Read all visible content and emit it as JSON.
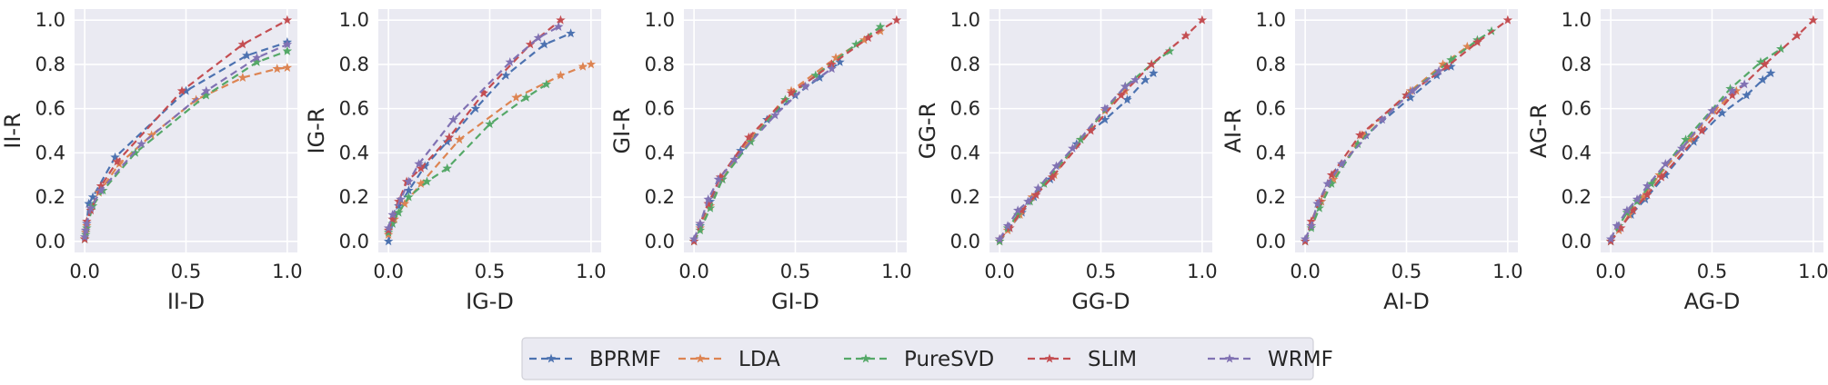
{
  "colors": {
    "panel_bg": "#eaeaf2",
    "grid": "#ffffff",
    "BPRMF": "#4c72b0",
    "LDA": "#dd8452",
    "PureSVD": "#55a868",
    "SLIM": "#c44e52",
    "WRMF": "#8172b3"
  },
  "legend": {
    "placement": "bottom-center",
    "entries": [
      "BPRMF",
      "LDA",
      "PureSVD",
      "SLIM",
      "WRMF"
    ]
  },
  "chart_data": [
    {
      "type": "line",
      "xlabel": "II-D",
      "ylabel": "II-R",
      "xlim": [
        -0.05,
        1.05
      ],
      "ylim": [
        -0.05,
        1.05
      ],
      "xticks": [
        "0.0",
        "0.5",
        "1.0"
      ],
      "yticks": [
        "0.0",
        "0.2",
        "0.4",
        "0.6",
        "0.8",
        "1.0"
      ],
      "grid": true,
      "series": [
        {
          "name": "BPRMF",
          "x": [
            0.0,
            0.005,
            0.01,
            0.02,
            0.04,
            0.15,
            0.5,
            0.8,
            1.0
          ],
          "y": [
            0.01,
            0.04,
            0.08,
            0.17,
            0.2,
            0.38,
            0.68,
            0.84,
            0.9
          ]
        },
        {
          "name": "LDA",
          "x": [
            0.0,
            0.005,
            0.01,
            0.03,
            0.07,
            0.17,
            0.33,
            0.55,
            0.78,
            0.95,
            1.0
          ],
          "y": [
            0.01,
            0.04,
            0.07,
            0.15,
            0.22,
            0.35,
            0.48,
            0.64,
            0.74,
            0.78,
            0.785
          ]
        },
        {
          "name": "PureSVD",
          "x": [
            0.0,
            0.005,
            0.01,
            0.04,
            0.09,
            0.25,
            0.6,
            0.85,
            1.0
          ],
          "y": [
            0.01,
            0.03,
            0.06,
            0.16,
            0.23,
            0.4,
            0.66,
            0.81,
            0.86
          ]
        },
        {
          "name": "SLIM",
          "x": [
            0.0,
            0.005,
            0.01,
            0.03,
            0.08,
            0.16,
            0.48,
            0.78,
            1.0
          ],
          "y": [
            0.01,
            0.05,
            0.09,
            0.14,
            0.25,
            0.36,
            0.68,
            0.89,
            1.0
          ]
        },
        {
          "name": "WRMF",
          "x": [
            0.0,
            0.005,
            0.01,
            0.03,
            0.08,
            0.28,
            0.6,
            0.85,
            1.0
          ],
          "y": [
            0.02,
            0.05,
            0.08,
            0.15,
            0.23,
            0.44,
            0.68,
            0.83,
            0.89
          ]
        }
      ]
    },
    {
      "type": "line",
      "xlabel": "IG-D",
      "ylabel": "IG-R",
      "xlim": [
        -0.05,
        1.05
      ],
      "ylim": [
        -0.05,
        1.05
      ],
      "xticks": [
        "0.0",
        "0.5",
        "1.0"
      ],
      "yticks": [
        "0.0",
        "0.2",
        "0.4",
        "0.6",
        "0.8",
        "1.0"
      ],
      "grid": true,
      "series": [
        {
          "name": "BPRMF",
          "x": [
            0.0,
            0.02,
            0.05,
            0.1,
            0.18,
            0.29,
            0.43,
            0.58,
            0.77,
            0.9
          ],
          "y": [
            0.0,
            0.08,
            0.16,
            0.23,
            0.34,
            0.45,
            0.6,
            0.75,
            0.89,
            0.94
          ]
        },
        {
          "name": "LDA",
          "x": [
            0.0,
            0.03,
            0.08,
            0.16,
            0.35,
            0.63,
            0.85,
            0.96,
            1.0
          ],
          "y": [
            0.03,
            0.1,
            0.17,
            0.26,
            0.46,
            0.65,
            0.75,
            0.79,
            0.8
          ]
        },
        {
          "name": "PureSVD",
          "x": [
            0.0,
            0.02,
            0.05,
            0.1,
            0.19,
            0.29,
            0.5,
            0.68,
            0.78
          ],
          "y": [
            0.04,
            0.08,
            0.13,
            0.2,
            0.27,
            0.33,
            0.53,
            0.65,
            0.71
          ]
        },
        {
          "name": "SLIM",
          "x": [
            0.0,
            0.02,
            0.05,
            0.09,
            0.16,
            0.3,
            0.47,
            0.7,
            0.85
          ],
          "y": [
            0.05,
            0.1,
            0.18,
            0.27,
            0.33,
            0.47,
            0.67,
            0.89,
            1.0
          ]
        },
        {
          "name": "WRMF",
          "x": [
            0.0,
            0.02,
            0.06,
            0.1,
            0.15,
            0.32,
            0.6,
            0.74,
            0.84
          ],
          "y": [
            0.06,
            0.12,
            0.19,
            0.27,
            0.35,
            0.55,
            0.81,
            0.92,
            0.97
          ]
        }
      ]
    },
    {
      "type": "line",
      "xlabel": "GI-D",
      "ylabel": "GI-R",
      "xlim": [
        -0.05,
        1.05
      ],
      "ylim": [
        -0.05,
        1.05
      ],
      "xticks": [
        "0.0",
        "0.5",
        "1.0"
      ],
      "yticks": [
        "0.0",
        "0.2",
        "0.4",
        "0.6",
        "0.8",
        "1.0"
      ],
      "grid": true,
      "series": [
        {
          "name": "BPRMF",
          "x": [
            0.0,
            0.03,
            0.08,
            0.14,
            0.23,
            0.36,
            0.5,
            0.62,
            0.72
          ],
          "y": [
            0.0,
            0.07,
            0.18,
            0.28,
            0.41,
            0.55,
            0.66,
            0.74,
            0.81
          ]
        },
        {
          "name": "LDA",
          "x": [
            0.0,
            0.03,
            0.08,
            0.14,
            0.28,
            0.48,
            0.7,
            0.84,
            0.92
          ],
          "y": [
            0.0,
            0.06,
            0.16,
            0.28,
            0.47,
            0.68,
            0.83,
            0.91,
            0.95
          ]
        },
        {
          "name": "PureSVD",
          "x": [
            0.0,
            0.03,
            0.08,
            0.14,
            0.28,
            0.45,
            0.6,
            0.8,
            0.92
          ],
          "y": [
            0.0,
            0.05,
            0.15,
            0.28,
            0.45,
            0.64,
            0.75,
            0.89,
            0.97
          ]
        },
        {
          "name": "SLIM",
          "x": [
            0.0,
            0.03,
            0.07,
            0.13,
            0.27,
            0.48,
            0.68,
            0.86,
            1.0
          ],
          "y": [
            0.0,
            0.08,
            0.17,
            0.29,
            0.47,
            0.67,
            0.8,
            0.92,
            1.0
          ]
        },
        {
          "name": "WRMF",
          "x": [
            0.0,
            0.03,
            0.07,
            0.12,
            0.2,
            0.4,
            0.55,
            0.68
          ],
          "y": [
            0.01,
            0.08,
            0.19,
            0.28,
            0.37,
            0.57,
            0.7,
            0.78
          ]
        }
      ]
    },
    {
      "type": "line",
      "xlabel": "GG-D",
      "ylabel": "GG-R",
      "xlim": [
        -0.05,
        1.05
      ],
      "ylim": [
        -0.05,
        1.05
      ],
      "xticks": [
        "0.0",
        "0.5",
        "1.0"
      ],
      "yticks": [
        "0.0",
        "0.2",
        "0.4",
        "0.6",
        "0.8",
        "1.0"
      ],
      "grid": true,
      "series": [
        {
          "name": "BPRMF",
          "x": [
            0.0,
            0.05,
            0.11,
            0.17,
            0.25,
            0.38,
            0.52,
            0.63,
            0.72,
            0.76
          ],
          "y": [
            0.0,
            0.06,
            0.13,
            0.2,
            0.28,
            0.44,
            0.55,
            0.64,
            0.73,
            0.76
          ]
        },
        {
          "name": "LDA",
          "x": [
            0.0,
            0.04,
            0.1,
            0.16,
            0.27,
            0.4,
            0.52,
            0.62
          ],
          "y": [
            0.0,
            0.05,
            0.12,
            0.2,
            0.3,
            0.46,
            0.59,
            0.68
          ]
        },
        {
          "name": "PureSVD",
          "x": [
            0.0,
            0.04,
            0.09,
            0.15,
            0.22,
            0.4,
            0.62,
            0.75,
            0.84
          ],
          "y": [
            0.0,
            0.06,
            0.12,
            0.18,
            0.26,
            0.46,
            0.7,
            0.8,
            0.86
          ]
        },
        {
          "name": "SLIM",
          "x": [
            0.0,
            0.05,
            0.11,
            0.18,
            0.26,
            0.45,
            0.6,
            0.75,
            0.92,
            1.0
          ],
          "y": [
            0.01,
            0.06,
            0.14,
            0.21,
            0.29,
            0.5,
            0.66,
            0.8,
            0.93,
            1.0
          ]
        },
        {
          "name": "WRMF",
          "x": [
            0.0,
            0.04,
            0.09,
            0.14,
            0.19,
            0.28,
            0.36,
            0.52,
            0.62,
            0.67
          ],
          "y": [
            0.01,
            0.07,
            0.14,
            0.18,
            0.24,
            0.34,
            0.42,
            0.6,
            0.7,
            0.73
          ]
        }
      ]
    },
    {
      "type": "line",
      "xlabel": "AI-D",
      "ylabel": "AI-R",
      "xlim": [
        -0.05,
        1.05
      ],
      "ylim": [
        -0.05,
        1.05
      ],
      "xticks": [
        "0.0",
        "0.5",
        "1.0"
      ],
      "yticks": [
        "0.0",
        "0.2",
        "0.4",
        "0.6",
        "0.8",
        "1.0"
      ],
      "grid": true,
      "series": [
        {
          "name": "BPRMF",
          "x": [
            0.0,
            0.03,
            0.08,
            0.15,
            0.3,
            0.52,
            0.65,
            0.72
          ],
          "y": [
            0.0,
            0.07,
            0.18,
            0.31,
            0.48,
            0.65,
            0.75,
            0.79
          ]
        },
        {
          "name": "LDA",
          "x": [
            0.0,
            0.03,
            0.08,
            0.14,
            0.28,
            0.52,
            0.68,
            0.8
          ],
          "y": [
            0.0,
            0.07,
            0.18,
            0.28,
            0.48,
            0.68,
            0.8,
            0.88
          ]
        },
        {
          "name": "PureSVD",
          "x": [
            0.0,
            0.03,
            0.07,
            0.13,
            0.26,
            0.5,
            0.72,
            0.85,
            0.92
          ],
          "y": [
            0.0,
            0.06,
            0.15,
            0.26,
            0.44,
            0.66,
            0.82,
            0.91,
            0.95
          ]
        },
        {
          "name": "SLIM",
          "x": [
            0.0,
            0.03,
            0.07,
            0.13,
            0.27,
            0.5,
            0.7,
            0.85,
            1.0
          ],
          "y": [
            0.0,
            0.09,
            0.18,
            0.3,
            0.48,
            0.66,
            0.79,
            0.9,
            1.0
          ]
        },
        {
          "name": "WRMF",
          "x": [
            0.0,
            0.03,
            0.06,
            0.11,
            0.18,
            0.38,
            0.53,
            0.66
          ],
          "y": [
            0.01,
            0.07,
            0.17,
            0.26,
            0.35,
            0.55,
            0.68,
            0.77
          ]
        }
      ]
    },
    {
      "type": "line",
      "xlabel": "AG-D",
      "ylabel": "AG-R",
      "xlim": [
        -0.05,
        1.05
      ],
      "ylim": [
        -0.05,
        1.05
      ],
      "xticks": [
        "0.0",
        "0.5",
        "1.0"
      ],
      "yticks": [
        "0.0",
        "0.2",
        "0.4",
        "0.6",
        "0.8",
        "1.0"
      ],
      "grid": true,
      "series": [
        {
          "name": "BPRMF",
          "x": [
            0.0,
            0.04,
            0.1,
            0.17,
            0.27,
            0.41,
            0.55,
            0.67,
            0.75,
            0.79
          ],
          "y": [
            0.0,
            0.06,
            0.12,
            0.19,
            0.3,
            0.45,
            0.58,
            0.66,
            0.73,
            0.76
          ]
        },
        {
          "name": "LDA",
          "x": [
            0.0,
            0.04,
            0.09,
            0.16,
            0.24,
            0.39,
            0.51,
            0.62
          ],
          "y": [
            0.0,
            0.05,
            0.12,
            0.2,
            0.3,
            0.46,
            0.59,
            0.68
          ]
        },
        {
          "name": "PureSVD",
          "x": [
            0.0,
            0.04,
            0.08,
            0.13,
            0.2,
            0.37,
            0.59,
            0.74,
            0.84
          ],
          "y": [
            0.0,
            0.07,
            0.13,
            0.18,
            0.26,
            0.46,
            0.69,
            0.81,
            0.87
          ]
        },
        {
          "name": "SLIM",
          "x": [
            0.0,
            0.05,
            0.11,
            0.18,
            0.25,
            0.45,
            0.6,
            0.76,
            0.92,
            1.0
          ],
          "y": [
            0.0,
            0.06,
            0.14,
            0.21,
            0.29,
            0.5,
            0.66,
            0.8,
            0.93,
            1.0
          ]
        },
        {
          "name": "WRMF",
          "x": [
            0.0,
            0.03,
            0.08,
            0.13,
            0.18,
            0.27,
            0.35,
            0.5,
            0.6,
            0.66
          ],
          "y": [
            0.01,
            0.07,
            0.14,
            0.19,
            0.25,
            0.35,
            0.42,
            0.59,
            0.68,
            0.71
          ]
        }
      ]
    }
  ]
}
